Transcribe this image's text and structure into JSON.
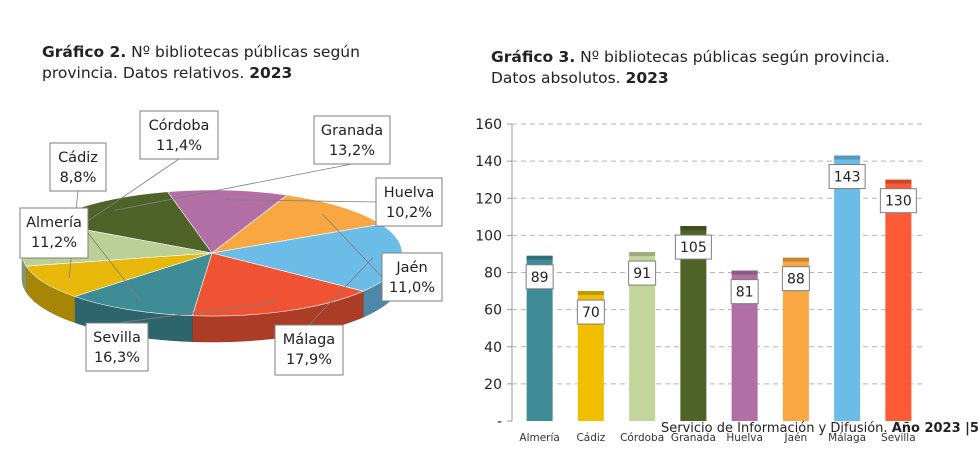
{
  "chart_data": [
    {
      "type": "pie",
      "title_bold": "Gráfico 2.",
      "title_line1": "Nº bibliotecas públicas según",
      "title_line2": "provincia. Datos relativos.",
      "title_year": "2023",
      "slices": [
        {
          "name": "Granada",
          "label": "13,2%",
          "value": 13.2,
          "color": "#4f6228"
        },
        {
          "name": "Huelva",
          "label": "10,2%",
          "value": 10.2,
          "color": "#b26fa6"
        },
        {
          "name": "Jaén",
          "label": "11,0%",
          "value": 11.0,
          "color": "#f9a742"
        },
        {
          "name": "Málaga",
          "label": "17,9%",
          "value": 17.9,
          "color": "#6cbce8"
        },
        {
          "name": "Sevilla",
          "label": "16,3%",
          "value": 16.3,
          "color": "#ef5334"
        },
        {
          "name": "Almería",
          "label": "11,2%",
          "value": 11.2,
          "color": "#3d8c96"
        },
        {
          "name": "Cádiz",
          "label": "8,8%",
          "value": 8.8,
          "color": "#e8b90a"
        },
        {
          "name": "Córdoba",
          "label": "11,4%",
          "value": 11.4,
          "color": "#bccf96"
        }
      ]
    },
    {
      "type": "bar",
      "title_bold": "Gráfico 3.",
      "title_line1": "Nº bibliotecas públicas según provincia.",
      "title_line2": "Datos absolutos.",
      "title_year": "2023",
      "categories": [
        "Almería",
        "Cádiz",
        "Córdoba",
        "Granada",
        "Huelva",
        "Jaén",
        "Málaga",
        "Sevilla"
      ],
      "values": [
        89,
        70,
        91,
        105,
        81,
        88,
        143,
        130
      ],
      "colors": [
        "#3d8c96",
        "#f2be00",
        "#c2d69b",
        "#4f6228",
        "#b26fa6",
        "#f9a742",
        "#6cbce8",
        "#ff5a36"
      ],
      "ylim": [
        0,
        160
      ],
      "yticks": [
        0,
        20,
        40,
        60,
        80,
        100,
        120,
        140,
        160
      ],
      "ytick_labels": [
        "-",
        "20",
        "40",
        "60",
        "80",
        "100",
        "120",
        "140",
        "160"
      ],
      "grid": true
    }
  ],
  "footer": {
    "text": "Servicio de Información y Difusión.",
    "year_bold": "Año 2023 |5"
  }
}
